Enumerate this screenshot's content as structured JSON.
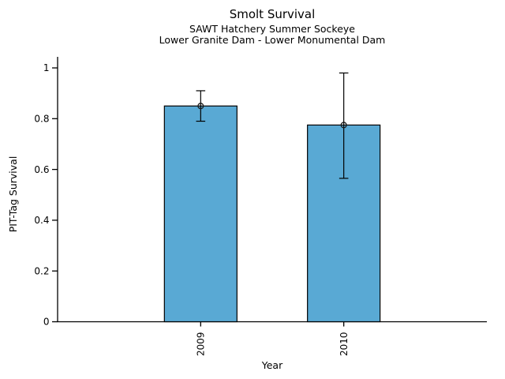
{
  "figure": {
    "background": "#ffffff"
  },
  "chart_data": {
    "type": "bar",
    "title": "Smolt Survival",
    "subtitle1": "SAWT Hatchery Summer Sockeye",
    "subtitle2": "Lower Granite Dam - Lower Monumental Dam",
    "xlabel": "Year",
    "ylabel": "PIT-Tag Survival",
    "categories": [
      "2009",
      "2010"
    ],
    "values": [
      0.85,
      0.775
    ],
    "error_low": [
      0.79,
      0.565
    ],
    "error_high": [
      0.91,
      0.98
    ],
    "ylim": [
      0,
      1
    ],
    "yticks": [
      0,
      0.2,
      0.4,
      0.6,
      0.8,
      1
    ],
    "ytick_labels": [
      "0",
      "0.2",
      "0.4",
      "0.6",
      "0.8",
      "1"
    ],
    "x_tick_label_rotation": 90,
    "bar_color": "#59A9D4",
    "bar_edge_color": "#000000",
    "error_color": "#000000",
    "marker": "open-circle",
    "grid": false,
    "legend": null
  }
}
